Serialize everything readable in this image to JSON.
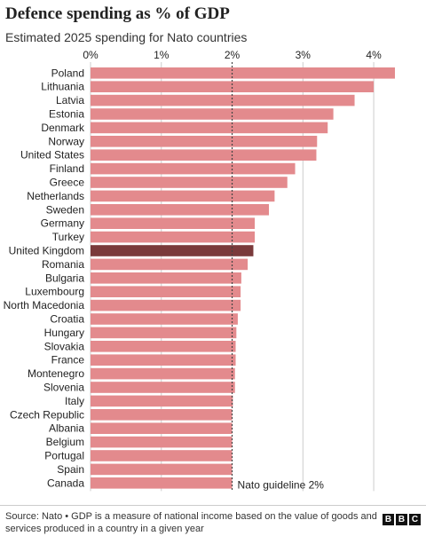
{
  "title": "Defence spending as % of GDP",
  "subtitle": "Estimated 2025 spending for Nato countries",
  "source": "Source: Nato • GDP is a measure of national income based on the value of goods and services produced in a country in a given year",
  "logo": [
    "B",
    "B",
    "C"
  ],
  "colors": {
    "bar": "#e38a8d",
    "highlight": "#7a3a3b",
    "grid": "#cccccc",
    "guideline": "#444444",
    "text": "#222222"
  },
  "chart_data": {
    "type": "bar",
    "orientation": "horizontal",
    "categories": [
      "Poland",
      "Lithuania",
      "Latvia",
      "Estonia",
      "Denmark",
      "Norway",
      "United States",
      "Finland",
      "Greece",
      "Netherlands",
      "Sweden",
      "Germany",
      "Turkey",
      "United Kingdom",
      "Romania",
      "Bulgaria",
      "Luxembourg",
      "North Macedonia",
      "Croatia",
      "Hungary",
      "Slovakia",
      "France",
      "Montenegro",
      "Slovenia",
      "Italy",
      "Czech Republic",
      "Albania",
      "Belgium",
      "Portugal",
      "Spain",
      "Canada"
    ],
    "values": [
      4.3,
      4.0,
      3.73,
      3.43,
      3.35,
      3.2,
      3.19,
      2.89,
      2.78,
      2.6,
      2.52,
      2.32,
      2.32,
      2.3,
      2.22,
      2.13,
      2.12,
      2.12,
      2.08,
      2.06,
      2.05,
      2.05,
      2.04,
      2.04,
      2.01,
      2.0,
      2.0,
      2.0,
      2.0,
      2.0,
      2.0
    ],
    "highlight": "United Kingdom",
    "xlim": [
      0,
      4.35
    ],
    "ticks": [
      0,
      1,
      2,
      3,
      4
    ],
    "tick_labels": [
      "0%",
      "1%",
      "2%",
      "3%",
      "4%"
    ],
    "grid": true,
    "reference_line": {
      "value": 2,
      "label": "Nato guideline 2%"
    }
  }
}
